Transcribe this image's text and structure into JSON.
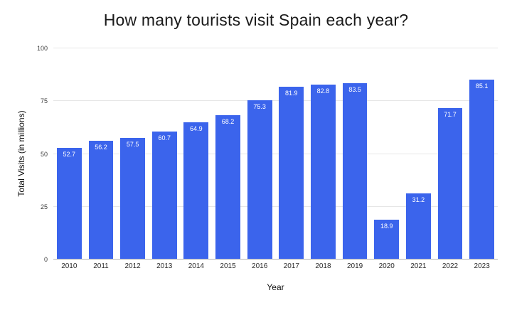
{
  "chart_data": {
    "type": "bar",
    "title": "How many tourists visit Spain each year?",
    "xlabel": "Year",
    "ylabel": "Total Visits (in millions)",
    "categories": [
      "2010",
      "2011",
      "2012",
      "2013",
      "2014",
      "2015",
      "2016",
      "2017",
      "2018",
      "2019",
      "2020",
      "2021",
      "2022",
      "2023"
    ],
    "values": [
      52.7,
      56.2,
      57.5,
      60.7,
      64.9,
      68.2,
      75.3,
      81.9,
      82.8,
      83.5,
      18.9,
      31.2,
      71.7,
      85.1
    ],
    "yticks": [
      0,
      25,
      50,
      75,
      100
    ],
    "ylim": [
      0,
      100
    ],
    "grid": true,
    "legend": "none",
    "bar_color": "#3b64ec",
    "bar_label_color": "#ffffff"
  }
}
